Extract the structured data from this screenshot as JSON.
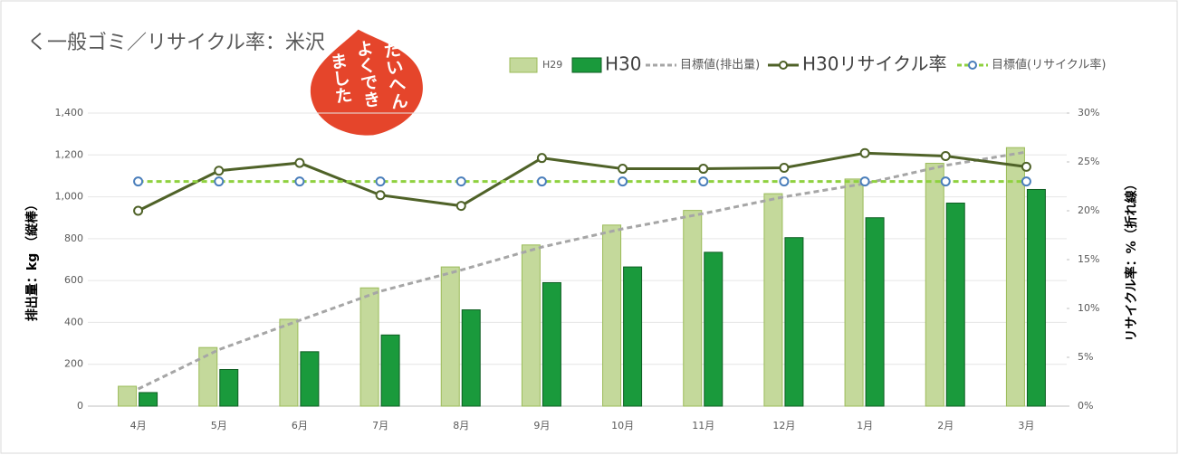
{
  "chart_data": {
    "type": "bar",
    "title": "く一般ゴミ／リサイクル率：米沢",
    "stamp": {
      "lines": [
        "たいへん",
        "よくでき",
        "ました"
      ]
    },
    "ylabel": "排出量：kg （縦棒）",
    "y2label": "リサイクル率：%（折れ線）",
    "categories": [
      "4月",
      "5月",
      "6月",
      "7月",
      "8月",
      "9月",
      "10月",
      "11月",
      "12月",
      "1月",
      "2月",
      "3月"
    ],
    "series": [
      {
        "name": "H29",
        "type": "bar",
        "color": "#c4d99b",
        "values": [
          95,
          280,
          415,
          565,
          665,
          770,
          865,
          935,
          1015,
          1085,
          1160,
          1235
        ]
      },
      {
        "name": "H30",
        "type": "bar",
        "color": "#1a9a3c",
        "values": [
          65,
          175,
          260,
          340,
          460,
          590,
          665,
          735,
          805,
          900,
          970,
          1035
        ]
      },
      {
        "name": "目標値(排出量)",
        "type": "line",
        "color": "#a6a6a6",
        "dashed": true,
        "values": [
          82,
          270,
          410,
          549,
          650,
          760,
          847,
          920,
          1000,
          1063,
          1150,
          1214
        ]
      },
      {
        "name": "H30リサイクル率",
        "type": "line",
        "color": "#4f6228",
        "marker": "circle",
        "axis": "y2",
        "values": [
          20.0,
          24.1,
          24.9,
          21.6,
          20.5,
          25.4,
          24.3,
          24.3,
          24.4,
          25.9,
          25.6,
          24.5
        ]
      },
      {
        "name": "目標値(リサイクル率)",
        "type": "line",
        "color": "#8fd13f",
        "dashed": true,
        "marker": "circle",
        "marker_color": "#4a7ebb",
        "axis": "y2",
        "values": [
          23,
          23,
          23,
          23,
          23,
          23,
          23,
          23,
          23,
          23,
          23,
          23
        ]
      }
    ],
    "ylim": [
      0,
      1400
    ],
    "yticks": [
      0,
      200,
      400,
      600,
      800,
      {
        "value": 1000,
        "label": "1,000"
      },
      {
        "value": 1200,
        "label": "1,200"
      },
      {
        "value": 1400,
        "label": "1,400"
      }
    ],
    "y2lim": [
      0,
      30
    ],
    "y2ticks": [
      {
        "value": 0,
        "label": "0%"
      },
      {
        "value": 5,
        "label": "5%"
      },
      {
        "value": 10,
        "label": "10%"
      },
      {
        "value": 15,
        "label": "15%"
      },
      {
        "value": 20,
        "label": "20%"
      },
      {
        "value": 25,
        "label": "25%"
      },
      {
        "value": 30,
        "label": "30%"
      }
    ],
    "grid": true,
    "legend": "top"
  }
}
